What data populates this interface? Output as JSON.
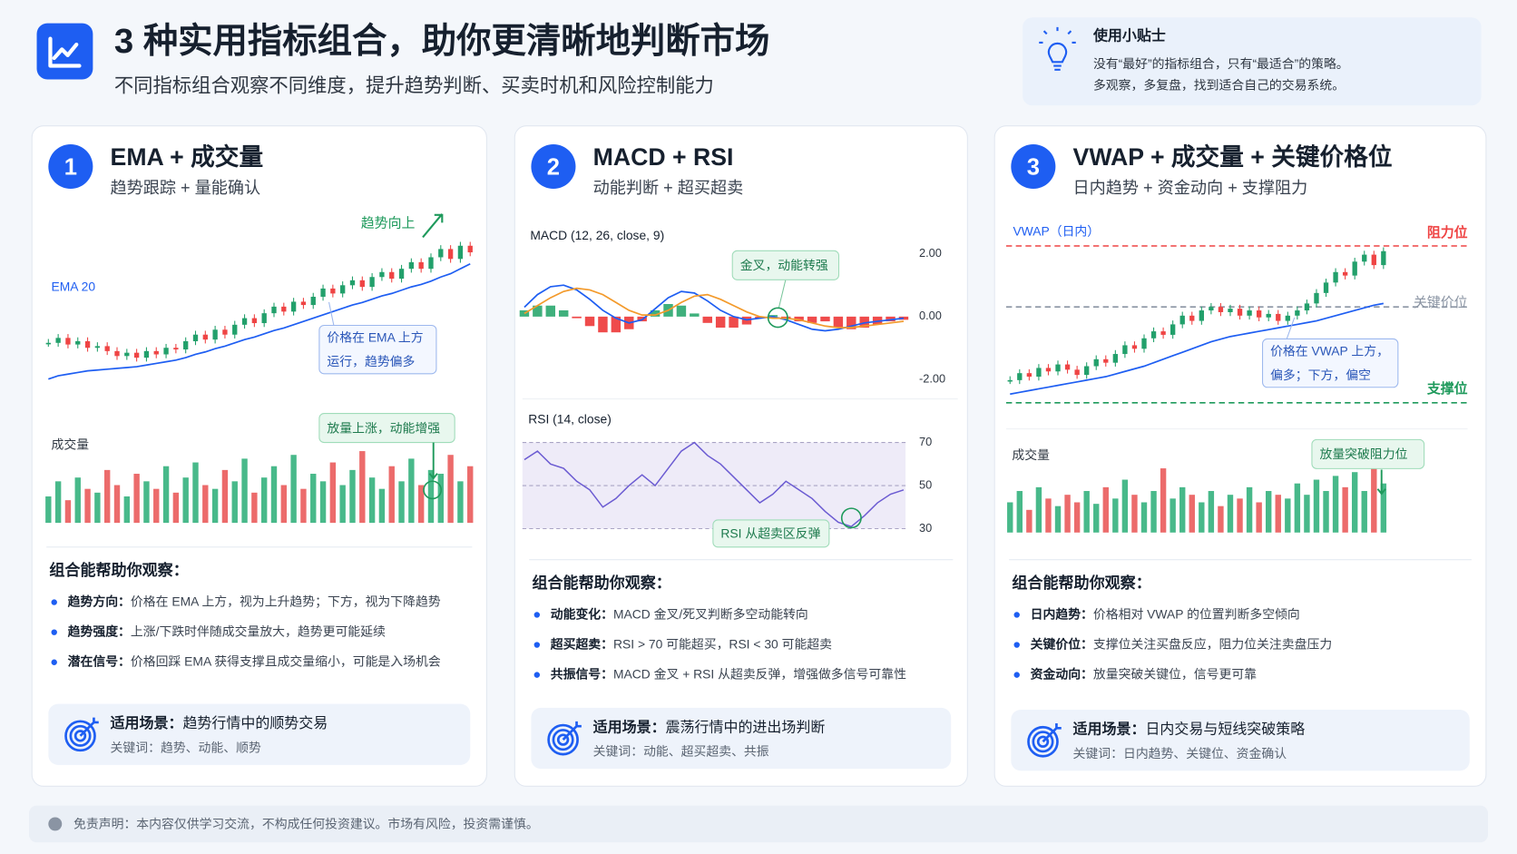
{
  "header": {
    "title": "3 种实用指标组合，助你更清晰地判断市场",
    "subtitle": "不同指标组合观察不同维度，提升趋势判断、买卖时机和风险控制能力"
  },
  "tip": {
    "title": "使用小贴士",
    "lines": [
      "没有“最好”的指标组合，只有“最适合”的策略。",
      "多观察，多复盘，找到适合自己的交易系统。"
    ]
  },
  "cards": [
    {
      "number": "1",
      "title": "EMA + 成交量",
      "subtitle": "趋势跟踪 + 量能确认",
      "chart": {
        "ema_label": "EMA 20",
        "trend_label": "趋势向上",
        "callout": [
          "价格在 EMA 上方",
          "运行，趋势偏多"
        ],
        "volume_label": "成交量",
        "volume_callout": "放量上涨，动能增强",
        "ylim": [
          0,
          100
        ],
        "close": [
          27,
          30,
          26,
          28,
          24,
          25,
          22,
          19,
          21,
          18,
          22,
          20,
          24,
          23,
          28,
          32,
          29,
          35,
          32,
          38,
          42,
          39,
          45,
          49,
          46,
          52,
          50,
          55,
          60,
          57,
          62,
          65,
          61,
          67,
          70,
          66,
          72,
          76,
          72,
          79,
          84,
          78,
          86,
          82
        ],
        "ema": [
          5,
          7,
          8,
          9,
          10,
          10.5,
          11,
          11.5,
          12,
          12.5,
          13.5,
          14.5,
          15.5,
          16.5,
          18,
          20,
          21.5,
          23.5,
          25,
          27,
          29,
          30.5,
          32.5,
          34.5,
          36,
          38,
          40,
          42,
          44,
          46,
          48,
          50,
          51.5,
          53.5,
          55.5,
          57,
          59,
          61,
          62.5,
          64.5,
          67,
          69,
          72,
          75
        ],
        "volume_ylim": [
          0,
          100
        ],
        "volume": [
          35,
          55,
          30,
          60,
          45,
          40,
          70,
          50,
          35,
          65,
          55,
          45,
          75,
          40,
          60,
          80,
          50,
          45,
          70,
          55,
          85,
          40,
          60,
          75,
          50,
          90,
          45,
          65,
          55,
          80,
          50,
          70,
          95,
          60,
          45,
          75,
          55,
          85,
          50,
          70,
          65,
          90,
          55,
          75
        ]
      },
      "observe_title": "组合能帮助你观察：",
      "observations": [
        {
          "label": "趋势方向：",
          "text": "价格在 EMA 上方，视为上升趋势；下方，视为下降趋势"
        },
        {
          "label": "趋势强度：",
          "text": "上涨/下跌时伴随成交量放大，趋势更可能延续"
        },
        {
          "label": "潜在信号：",
          "text": "价格回踩 EMA 获得支撑且成交量缩小，可能是入场机会"
        }
      ],
      "scenario": {
        "label": "适用场景：",
        "text": "趋势行情中的顺势交易",
        "keywords": "关键词：趋势、动能、顺势"
      }
    },
    {
      "number": "2",
      "title": "MACD + RSI",
      "subtitle": "动能判断 + 超买超卖",
      "chart": {
        "macd_label": "MACD (12, 26, close, 9)",
        "macd_callout": "金叉，动能转强",
        "macd_ylim": [
          -2,
          2
        ],
        "macd_ticks": [
          {
            "value": 2,
            "label": "2.00"
          },
          {
            "value": 0,
            "label": "0.00"
          },
          {
            "value": -2,
            "label": "-2.00"
          }
        ],
        "macd": [
          0.3,
          0.7,
          0.95,
          1.0,
          0.85,
          0.55,
          0.2,
          -0.05,
          -0.2,
          -0.1,
          0.25,
          0.6,
          0.8,
          0.75,
          0.5,
          0.2,
          0.0,
          -0.1,
          -0.05,
          0.0,
          -0.1,
          -0.25,
          -0.4,
          -0.45,
          -0.4,
          -0.3,
          -0.2,
          -0.15,
          -0.1,
          -0.05
        ],
        "signal": [
          0.1,
          0.35,
          0.6,
          0.8,
          0.9,
          0.85,
          0.7,
          0.45,
          0.2,
          0.05,
          0.05,
          0.2,
          0.45,
          0.65,
          0.7,
          0.55,
          0.35,
          0.15,
          0.0,
          -0.05,
          -0.05,
          -0.1,
          -0.2,
          -0.3,
          -0.35,
          -0.35,
          -0.3,
          -0.25,
          -0.2,
          -0.15
        ],
        "hist": [
          0.2,
          0.35,
          0.35,
          0.2,
          -0.05,
          -0.3,
          -0.5,
          -0.5,
          -0.4,
          -0.15,
          0.2,
          0.4,
          0.35,
          0.1,
          -0.2,
          -0.35,
          -0.35,
          -0.25,
          -0.05,
          0.05,
          -0.05,
          -0.15,
          -0.2,
          -0.15,
          -0.35,
          -0.4,
          -0.35,
          -0.25,
          -0.15,
          -0.1
        ],
        "rsi_label": "RSI (14, close)",
        "rsi_callout": "RSI 从超卖区反弹",
        "rsi_ylim": [
          30,
          70
        ],
        "rsi_ticks": [
          70,
          50,
          30
        ],
        "rsi": [
          62,
          66,
          60,
          58,
          52,
          48,
          40,
          44,
          50,
          55,
          50,
          58,
          66,
          70,
          64,
          60,
          54,
          48,
          42,
          46,
          52,
          48,
          44,
          38,
          33,
          31,
          36,
          42,
          46,
          48
        ]
      },
      "observe_title": "组合能帮助你观察：",
      "observations": [
        {
          "label": "动能变化：",
          "text": "MACD 金叉/死叉判断多空动能转向"
        },
        {
          "label": "超买超卖：",
          "text": "RSI > 70 可能超买，RSI < 30 可能超卖"
        },
        {
          "label": "共振信号：",
          "text": "MACD 金叉 + RSI 从超卖反弹，增强做多信号可靠性"
        }
      ],
      "scenario": {
        "label": "适用场景：",
        "text": "震荡行情中的进出场判断",
        "keywords": "关键词：动能、超买超卖、共振"
      }
    },
    {
      "number": "3",
      "title": "VWAP + 成交量 + 关键价格位",
      "subtitle": "日内趋势 + 资金动向 + 支撑阻力",
      "chart": {
        "vwap_label": "VWAP（日内）",
        "callout": [
          "价格在 VWAP 上方，",
          "偏多；下方，偏空"
        ],
        "volume_label": "成交量",
        "volume_callout": "放量突破阻力位",
        "ylim": [
          0,
          100
        ],
        "levels": [
          {
            "label": "阻力位",
            "value": 95
          },
          {
            "label": "关键价位",
            "value": 60
          },
          {
            "label": "支撑位",
            "value": 5
          }
        ],
        "close": [
          18,
          22,
          20,
          25,
          23,
          27,
          24,
          21,
          26,
          30,
          28,
          33,
          38,
          36,
          42,
          46,
          44,
          50,
          55,
          52,
          58,
          60,
          57,
          59,
          55,
          58,
          54,
          56,
          52,
          55,
          58,
          62,
          68,
          74,
          80,
          78,
          86,
          90,
          84,
          92
        ],
        "vwap": [
          10,
          11,
          12,
          13,
          14,
          15,
          16,
          17,
          18,
          19,
          20,
          21.5,
          23,
          24.5,
          26,
          28,
          30,
          32,
          34,
          36,
          38,
          40,
          41.5,
          43,
          44,
          45,
          46,
          47,
          48,
          49,
          50,
          51,
          52,
          53.5,
          55,
          56.5,
          58,
          59.5,
          61,
          62
        ],
        "volume_ylim": [
          0,
          100
        ],
        "volume": [
          40,
          55,
          30,
          60,
          45,
          35,
          50,
          40,
          55,
          38,
          60,
          45,
          70,
          50,
          40,
          55,
          85,
          45,
          60,
          50,
          40,
          55,
          35,
          50,
          45,
          60,
          40,
          55,
          50,
          45,
          65,
          50,
          70,
          55,
          75,
          60,
          80,
          55,
          90,
          65
        ]
      },
      "observe_title": "组合能帮助你观察：",
      "observations": [
        {
          "label": "日内趋势：",
          "text": "价格相对 VWAP 的位置判断多空倾向"
        },
        {
          "label": "关键价位：",
          "text": "支撑位关注买盘反应，阻力位关注卖盘压力"
        },
        {
          "label": "资金动向：",
          "text": "放量突破关键位，信号更可靠"
        }
      ],
      "scenario": {
        "label": "适用场景：",
        "text": "日内交易与短线突破策略",
        "keywords": "关键词：日内趋势、关键位、资金确认"
      }
    }
  ],
  "footer": "免责声明：本内容仅供学习交流，不构成任何投资建议。市场有风险，投资需谨慎。"
}
